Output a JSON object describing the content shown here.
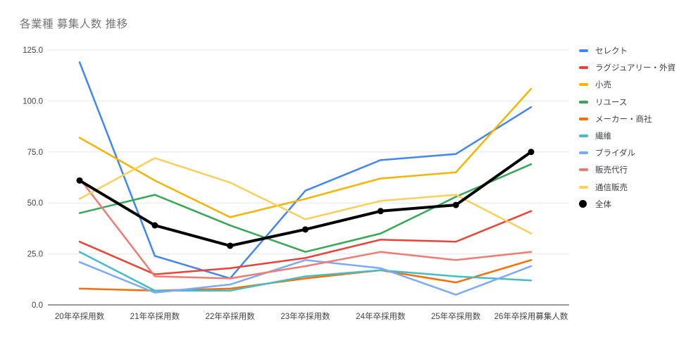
{
  "chart_data": {
    "type": "line",
    "title": "各業種 募集人数 推移",
    "xlabel": "",
    "ylabel": "",
    "ylim": [
      0,
      125
    ],
    "yticks": [
      0,
      25,
      50,
      75,
      100,
      125
    ],
    "ytick_format_decimals": 1,
    "grid": true,
    "legend_position": "right",
    "categories": [
      "20年卒採用数",
      "21年卒採用数",
      "22年卒採用数",
      "23年卒採用数",
      "24年卒採用数",
      "25年卒採用数",
      "26年卒採用募集人数"
    ],
    "series": [
      {
        "name": "セレクト",
        "color": "#4285F4",
        "values": [
          119,
          24,
          13,
          56,
          71,
          74,
          97
        ],
        "marker": false,
        "thick": false
      },
      {
        "name": "ラグジュアリー・外資",
        "color": "#EA4335",
        "values": [
          31,
          15,
          18,
          23,
          32,
          31,
          46
        ],
        "marker": false,
        "thick": false
      },
      {
        "name": "小売",
        "color": "#F4B400",
        "values": [
          82,
          61,
          43,
          52,
          62,
          65,
          106
        ],
        "marker": false,
        "thick": false
      },
      {
        "name": "リユース",
        "color": "#34A853",
        "values": [
          45,
          54,
          39,
          26,
          35,
          53,
          69
        ],
        "marker": false,
        "thick": false
      },
      {
        "name": "メーカー・商社",
        "color": "#FF6D01",
        "values": [
          8,
          7,
          8,
          13,
          17,
          11,
          22
        ],
        "marker": false,
        "thick": false
      },
      {
        "name": "繊維",
        "color": "#46BDC6",
        "values": [
          26,
          7,
          7,
          14,
          17,
          14,
          12
        ],
        "marker": false,
        "thick": false
      },
      {
        "name": "ブライダル",
        "color": "#7BAAF7",
        "values": [
          21,
          6,
          10,
          22,
          18,
          5,
          19
        ],
        "marker": false,
        "thick": false
      },
      {
        "name": "販売代行",
        "color": "#F07B72",
        "values": [
          62,
          14,
          13,
          19,
          26,
          22,
          26
        ],
        "marker": false,
        "thick": false
      },
      {
        "name": "通信販売",
        "color": "#FAD05A",
        "values": [
          52,
          72,
          60,
          42,
          51,
          54,
          35
        ],
        "marker": false,
        "thick": false
      },
      {
        "name": "全体",
        "color": "#000000",
        "values": [
          61,
          39,
          29,
          37,
          46,
          49,
          75
        ],
        "marker": true,
        "thick": true
      }
    ],
    "colors": {
      "title_text": "#757575",
      "axis_text": "#424242",
      "gridline": "#e6e6e6",
      "axis_line": "#333333",
      "background": "#ffffff"
    }
  }
}
